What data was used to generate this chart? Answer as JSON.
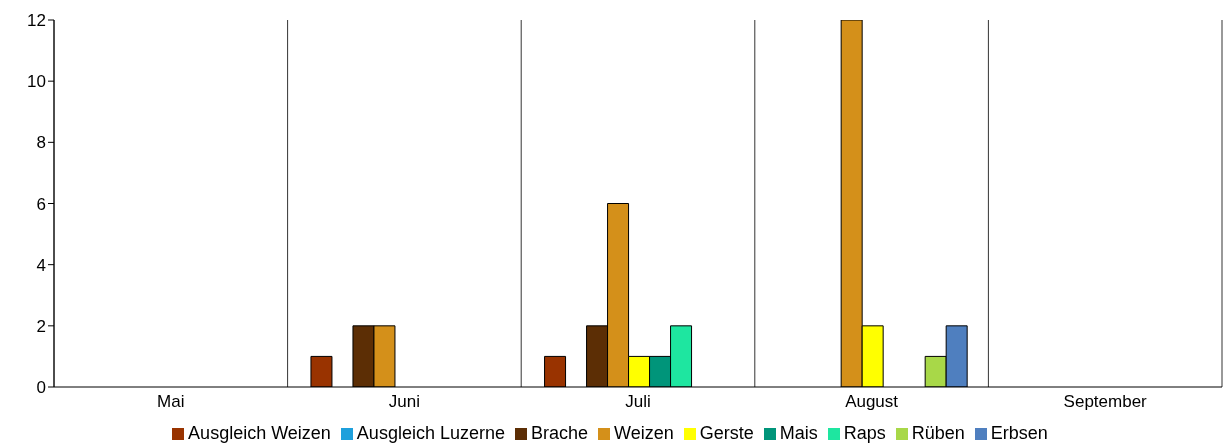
{
  "chart_data": {
    "type": "bar",
    "categories": [
      "Mai",
      "Juni",
      "Juli",
      "August",
      "September"
    ],
    "series": [
      {
        "name": "Ausgleich Weizen",
        "color": "#993300",
        "values": [
          0,
          1,
          1,
          0,
          0
        ]
      },
      {
        "name": "Ausgleich Luzerne",
        "color": "#1ea0dc",
        "values": [
          0,
          0,
          0,
          0,
          0
        ]
      },
      {
        "name": "Brache",
        "color": "#5c2e05",
        "values": [
          0,
          2,
          2,
          0,
          0
        ]
      },
      {
        "name": "Weizen",
        "color": "#d4901a",
        "values": [
          0,
          2,
          6,
          12,
          0
        ]
      },
      {
        "name": "Gerste",
        "color": "#ffff00",
        "values": [
          0,
          0,
          1,
          2,
          0
        ]
      },
      {
        "name": "Mais",
        "color": "#00957a",
        "values": [
          0,
          0,
          1,
          0,
          0
        ]
      },
      {
        "name": "Raps",
        "color": "#1ee6a0",
        "values": [
          0,
          0,
          2,
          0,
          0
        ]
      },
      {
        "name": "Rüben",
        "color": "#a8d848",
        "values": [
          0,
          0,
          0,
          1,
          0
        ]
      },
      {
        "name": "Erbsen",
        "color": "#4f7fbf",
        "values": [
          0,
          0,
          0,
          2,
          0
        ]
      }
    ],
    "ylim": [
      0,
      12
    ],
    "yticks": [
      0,
      2,
      4,
      6,
      8,
      10,
      12
    ],
    "grid": "x",
    "legend": "bottom"
  }
}
